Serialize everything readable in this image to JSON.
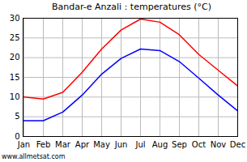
{
  "chart_data": {
    "type": "line",
    "title": "Bandar-e Anzali : temperatures (°C)",
    "annotations": [
      "www.allmetsat.com"
    ],
    "categories": [
      "Jan",
      "Feb",
      "Mar",
      "Apr",
      "May",
      "Jun",
      "Jul",
      "Aug",
      "Sep",
      "Oct",
      "Nov",
      "Dec"
    ],
    "series": [
      {
        "color": "#ff0000",
        "values": [
          10,
          9.5,
          11.2,
          16.3,
          22.2,
          27,
          29.8,
          29,
          25.8,
          20.8,
          16.8,
          12.8
        ]
      },
      {
        "color": "#0000ff",
        "values": [
          4,
          4,
          6.2,
          10.5,
          15.8,
          19.8,
          22.2,
          21.8,
          19,
          14.8,
          10.5,
          6.5
        ]
      }
    ],
    "ylim": [
      0,
      30
    ],
    "yticks": [
      0,
      5,
      10,
      15,
      20,
      25,
      30
    ],
    "grid": true
  }
}
